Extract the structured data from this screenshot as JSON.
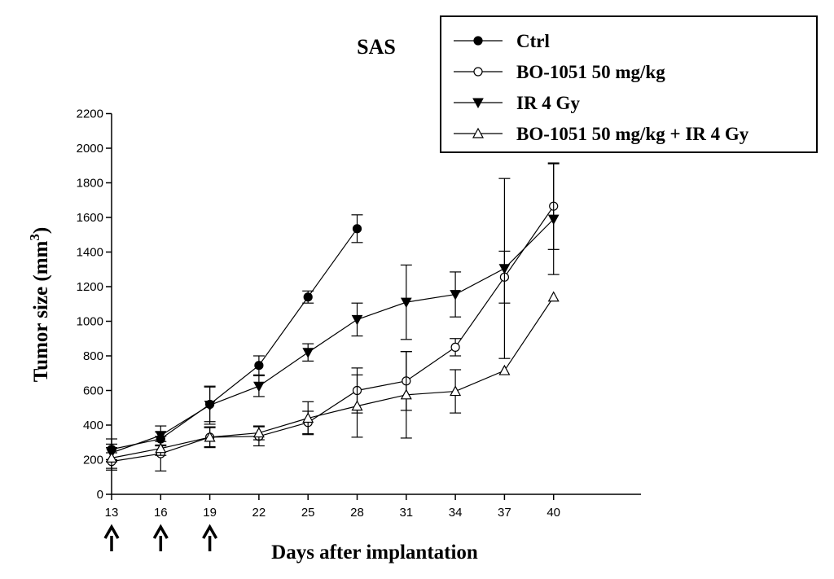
{
  "chart_data": {
    "type": "line",
    "title": "SAS",
    "xlabel": "Days after implantation",
    "ylabel": "Tumor size (mm",
    "ylabel_sup": "3",
    "ylabel_close": ")",
    "xlim": [
      13,
      44
    ],
    "ylim": [
      0,
      2200
    ],
    "x_ticks": [
      13,
      16,
      19,
      22,
      25,
      28,
      31,
      34,
      37,
      40
    ],
    "y_ticks": [
      0,
      200,
      400,
      600,
      800,
      1000,
      1200,
      1400,
      1600,
      1800,
      2000,
      2200
    ],
    "grid": false,
    "legend_position": "top-right",
    "annotations": [
      {
        "type": "arrow-up",
        "x": 13
      },
      {
        "type": "arrow-up",
        "x": 16
      },
      {
        "type": "arrow-up",
        "x": 19
      }
    ],
    "series": [
      {
        "name": "Ctrl",
        "marker": "filled-circle",
        "points": [
          {
            "x": 13,
            "y": 260,
            "err": 60
          },
          {
            "x": 16,
            "y": 320,
            "err": 40
          },
          {
            "x": 19,
            "y": 520,
            "err": 100
          },
          {
            "x": 22,
            "y": 745,
            "err": 55
          },
          {
            "x": 25,
            "y": 1140,
            "err": 35
          },
          {
            "x": 28,
            "y": 1535,
            "err": 80
          }
        ]
      },
      {
        "name": "BO-1051 50 mg/kg",
        "marker": "open-circle",
        "points": [
          {
            "x": 13,
            "y": 190,
            "err": 50
          },
          {
            "x": 16,
            "y": 235,
            "err": 100
          },
          {
            "x": 19,
            "y": 330,
            "err": 60
          },
          {
            "x": 22,
            "y": 335,
            "err": 55
          },
          {
            "x": 25,
            "y": 415,
            "err": 65
          },
          {
            "x": 28,
            "y": 600,
            "err": 130
          },
          {
            "x": 31,
            "y": 655,
            "err": 170
          },
          {
            "x": 34,
            "y": 850,
            "err": 50
          },
          {
            "x": 37,
            "y": 1255,
            "err": 150
          },
          {
            "x": 40,
            "y": 1665,
            "err": 250
          }
        ]
      },
      {
        "name": "IR 4 Gy",
        "marker": "filled-triangle-down",
        "points": [
          {
            "x": 13,
            "y": 240,
            "err": 50
          },
          {
            "x": 16,
            "y": 340,
            "err": 55
          },
          {
            "x": 19,
            "y": 515,
            "err": 110
          },
          {
            "x": 22,
            "y": 625,
            "err": 60
          },
          {
            "x": 25,
            "y": 820,
            "err": 50
          },
          {
            "x": 28,
            "y": 1010,
            "err": 95
          },
          {
            "x": 31,
            "y": 1110,
            "err": 215
          },
          {
            "x": 34,
            "y": 1155,
            "err": 130
          },
          {
            "x": 37,
            "y": 1305,
            "err": 520
          },
          {
            "x": 40,
            "y": 1590,
            "err": 320
          }
        ]
      },
      {
        "name": "BO-1051 50 mg/kg + IR 4 Gy",
        "marker": "open-triangle-up",
        "points": [
          {
            "x": 13,
            "y": 210,
            "err": 60
          },
          {
            "x": 16,
            "y": 265,
            "err": 40
          },
          {
            "x": 19,
            "y": 330,
            "err": 55
          },
          {
            "x": 22,
            "y": 355,
            "err": 40
          },
          {
            "x": 25,
            "y": 440,
            "err": 95
          },
          {
            "x": 28,
            "y": 510,
            "err": 180
          },
          {
            "x": 31,
            "y": 575,
            "err": 250
          },
          {
            "x": 34,
            "y": 595,
            "err": 125
          },
          {
            "x": 37,
            "y": 715,
            "err": 0
          },
          {
            "x": 40,
            "y": 1140,
            "err": 0
          }
        ]
      }
    ]
  }
}
